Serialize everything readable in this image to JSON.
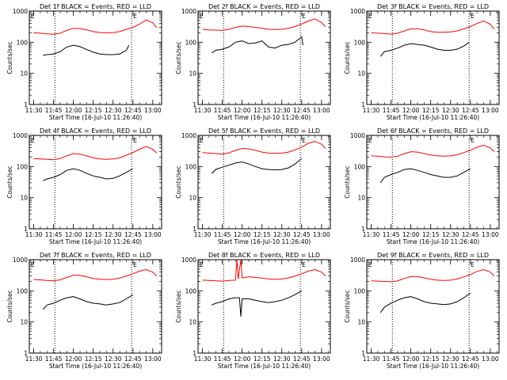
{
  "colors": {
    "events": "#000000",
    "lld": "#ff0000",
    "axes": "#000000",
    "background": "#ffffff"
  },
  "chart_data": {
    "type": "line",
    "layout": "3x3 grid",
    "x_axis": {
      "label": "Start Time (16-Jul-10 11:26:40)",
      "ticks": [
        "11:30",
        "11:45",
        "12:00",
        "12:15",
        "12:30",
        "12:45",
        "13:00"
      ],
      "range": [
        "11:26:40",
        "13:06:40"
      ]
    },
    "y_axis": {
      "label": "Counts/sec",
      "scale": "log",
      "range": [
        1,
        1000
      ],
      "ticks": [
        "1",
        "10",
        "100",
        "1000"
      ]
    },
    "markers": [
      {
        "time": "11:46",
        "style": "dotted"
      },
      {
        "time": "12:44",
        "style": "dotted",
        "label": "E"
      }
    ],
    "start_marker_label": "E",
    "panels": [
      {
        "title": "Det 1f BLACK = Events, RED = LLD",
        "series": [
          {
            "name": "Events",
            "color": "#000000",
            "x": [
              "11:37",
              "11:40",
              "11:45",
              "11:50",
              "11:55",
              "12:00",
              "12:05",
              "12:10",
              "12:15",
              "12:20",
              "12:25",
              "12:30",
              "12:35",
              "12:40",
              "12:42"
            ],
            "y": [
              38,
              40,
              42,
              50,
              70,
              80,
              72,
              58,
              48,
              42,
              40,
              40,
              42,
              55,
              80
            ]
          },
          {
            "name": "LLD",
            "color": "#ff0000",
            "x": [
              "11:30",
              "11:35",
              "11:40",
              "11:45",
              "11:50",
              "11:55",
              "12:00",
              "12:05",
              "12:10",
              "12:15",
              "12:20",
              "12:25",
              "12:30",
              "12:35",
              "12:40",
              "12:45",
              "12:50",
              "12:55",
              "13:00",
              "13:03"
            ],
            "y": [
              200,
              195,
              185,
              180,
              195,
              240,
              280,
              275,
              250,
              220,
              205,
              200,
              205,
              220,
              260,
              300,
              380,
              520,
              420,
              290
            ]
          }
        ]
      },
      {
        "title": "Det 2f BLACK = Events, RED = LLD",
        "series": [
          {
            "name": "Events",
            "color": "#000000",
            "x": [
              "11:37",
              "11:40",
              "11:45",
              "11:50",
              "11:55",
              "12:00",
              "12:05",
              "12:10",
              "12:15",
              "12:20",
              "12:25",
              "12:30",
              "12:35",
              "12:40",
              "12:45",
              "12:46"
            ],
            "y": [
              45,
              55,
              60,
              70,
              100,
              110,
              90,
              95,
              110,
              70,
              65,
              80,
              85,
              100,
              150,
              80
            ]
          },
          {
            "name": "LLD",
            "color": "#ff0000",
            "x": [
              "11:30",
              "11:35",
              "11:40",
              "11:45",
              "11:50",
              "11:55",
              "12:00",
              "12:05",
              "12:10",
              "12:15",
              "12:20",
              "12:25",
              "12:30",
              "12:35",
              "12:40",
              "12:45",
              "12:50",
              "12:55",
              "13:00",
              "13:03"
            ],
            "y": [
              260,
              250,
              245,
              240,
              260,
              300,
              330,
              320,
              300,
              280,
              260,
              255,
              260,
              280,
              320,
              380,
              480,
              560,
              430,
              320
            ]
          }
        ]
      },
      {
        "title": "Det 3f BLACK = Events, RED = LLD",
        "series": [
          {
            "name": "Events",
            "color": "#000000",
            "x": [
              "11:37",
              "11:40",
              "11:45",
              "11:50",
              "11:55",
              "12:00",
              "12:05",
              "12:10",
              "12:15",
              "12:20",
              "12:25",
              "12:30",
              "12:35",
              "12:40",
              "12:44"
            ],
            "y": [
              35,
              50,
              55,
              65,
              80,
              90,
              85,
              80,
              70,
              60,
              55,
              55,
              60,
              75,
              100
            ]
          },
          {
            "name": "LLD",
            "color": "#ff0000",
            "x": [
              "11:30",
              "11:35",
              "11:40",
              "11:45",
              "11:50",
              "11:55",
              "12:00",
              "12:05",
              "12:10",
              "12:15",
              "12:20",
              "12:25",
              "12:30",
              "12:35",
              "12:40",
              "12:45",
              "12:50",
              "12:55",
              "13:00",
              "13:03"
            ],
            "y": [
              200,
              195,
              190,
              180,
              195,
              230,
              270,
              270,
              250,
              220,
              210,
              210,
              215,
              230,
              270,
              320,
              400,
              480,
              380,
              260
            ]
          }
        ]
      },
      {
        "title": "Det 4f BLACK = Events, RED = LLD",
        "series": [
          {
            "name": "Events",
            "color": "#000000",
            "x": [
              "11:37",
              "11:40",
              "11:45",
              "11:50",
              "11:55",
              "12:00",
              "12:05",
              "12:10",
              "12:15",
              "12:20",
              "12:25",
              "12:30",
              "12:35",
              "12:40",
              "12:45"
            ],
            "y": [
              35,
              40,
              45,
              55,
              75,
              85,
              75,
              60,
              50,
              45,
              40,
              42,
              50,
              65,
              85
            ]
          },
          {
            "name": "LLD",
            "color": "#ff0000",
            "x": [
              "11:30",
              "11:35",
              "11:40",
              "11:45",
              "11:50",
              "11:55",
              "12:00",
              "12:05",
              "12:10",
              "12:15",
              "12:20",
              "12:25",
              "12:30",
              "12:35",
              "12:40",
              "12:45",
              "12:50",
              "12:55",
              "13:00",
              "13:03"
            ],
            "y": [
              180,
              175,
              170,
              165,
              180,
              220,
              260,
              250,
              220,
              190,
              175,
              170,
              175,
              190,
              230,
              280,
              360,
              440,
              360,
              270
            ]
          }
        ]
      },
      {
        "title": "Det 5f BLACK = Events, RED = LLD",
        "series": [
          {
            "name": "Events",
            "color": "#000000",
            "x": [
              "11:37",
              "11:40",
              "11:45",
              "11:50",
              "11:55",
              "12:00",
              "12:05",
              "12:10",
              "12:15",
              "12:20",
              "12:25",
              "12:30",
              "12:35",
              "12:40",
              "12:45"
            ],
            "y": [
              60,
              80,
              95,
              110,
              130,
              140,
              120,
              100,
              85,
              80,
              78,
              80,
              90,
              120,
              180
            ]
          },
          {
            "name": "LLD",
            "color": "#ff0000",
            "x": [
              "11:30",
              "11:35",
              "11:40",
              "11:45",
              "11:50",
              "11:55",
              "12:00",
              "12:05",
              "12:10",
              "12:15",
              "12:20",
              "12:25",
              "12:30",
              "12:35",
              "12:40",
              "12:45",
              "12:50",
              "12:55",
              "13:00",
              "13:03"
            ],
            "y": [
              280,
              270,
              260,
              250,
              275,
              330,
              380,
              370,
              330,
              290,
              270,
              265,
              270,
              290,
              340,
              420,
              560,
              640,
              520,
              380
            ]
          }
        ]
      },
      {
        "title": "Det 6f BLACK = Events, RED = LLD",
        "series": [
          {
            "name": "Events",
            "color": "#000000",
            "x": [
              "11:37",
              "11:40",
              "11:45",
              "11:50",
              "11:55",
              "12:00",
              "12:05",
              "12:10",
              "12:15",
              "12:20",
              "12:25",
              "12:30",
              "12:35",
              "12:40",
              "12:45"
            ],
            "y": [
              30,
              45,
              55,
              65,
              80,
              85,
              75,
              65,
              55,
              50,
              45,
              45,
              50,
              65,
              85
            ]
          },
          {
            "name": "LLD",
            "color": "#ff0000",
            "x": [
              "11:30",
              "11:35",
              "11:40",
              "11:45",
              "11:50",
              "11:55",
              "12:00",
              "12:05",
              "12:10",
              "12:15",
              "12:20",
              "12:25",
              "12:30",
              "12:35",
              "12:40",
              "12:45",
              "12:50",
              "12:55",
              "13:00",
              "13:03"
            ],
            "y": [
              220,
              215,
              205,
              200,
              215,
              260,
              300,
              290,
              260,
              235,
              220,
              215,
              220,
              240,
              280,
              330,
              420,
              480,
              400,
              300
            ]
          }
        ]
      },
      {
        "title": "Det 7f BLACK = Events, RED = LLD",
        "series": [
          {
            "name": "Events",
            "color": "#000000",
            "x": [
              "11:37",
              "11:40",
              "11:45",
              "11:50",
              "11:55",
              "12:00",
              "12:05",
              "12:10",
              "12:15",
              "12:20",
              "12:25",
              "12:30",
              "12:35",
              "12:40",
              "12:45"
            ],
            "y": [
              25,
              35,
              40,
              50,
              60,
              65,
              55,
              45,
              40,
              38,
              35,
              38,
              42,
              55,
              75
            ]
          },
          {
            "name": "LLD",
            "color": "#ff0000",
            "x": [
              "11:30",
              "11:35",
              "11:40",
              "11:45",
              "11:50",
              "11:55",
              "12:00",
              "12:05",
              "12:10",
              "12:15",
              "12:20",
              "12:25",
              "12:30",
              "12:35",
              "12:40",
              "12:45",
              "12:50",
              "12:55",
              "13:00",
              "13:03"
            ],
            "y": [
              230,
              225,
              215,
              210,
              225,
              270,
              320,
              310,
              280,
              250,
              235,
              230,
              235,
              255,
              300,
              350,
              430,
              480,
              400,
              300
            ]
          }
        ]
      },
      {
        "title": "Det 8f BLACK = Events, RED = LLD",
        "series": [
          {
            "name": "Events",
            "color": "#000000",
            "x": [
              "11:37",
              "11:40",
              "11:45",
              "11:50",
              "11:55",
              "11:58",
              "11:59",
              "12:00",
              "12:05",
              "12:10",
              "12:15",
              "12:20",
              "12:25",
              "12:30",
              "12:35",
              "12:40",
              "12:45"
            ],
            "y": [
              35,
              40,
              45,
              55,
              60,
              60,
              15,
              55,
              55,
              50,
              45,
              42,
              45,
              50,
              60,
              75,
              100
            ]
          },
          {
            "name": "LLD",
            "color": "#ff0000",
            "x": [
              "11:30",
              "11:35",
              "11:40",
              "11:45",
              "11:50",
              "11:55",
              "11:56",
              "11:57",
              "11:59",
              "12:00",
              "12:05",
              "12:10",
              "12:15",
              "12:20",
              "12:25",
              "12:30",
              "12:35",
              "12:40",
              "12:45",
              "12:50",
              "12:55",
              "13:00",
              "13:03"
            ],
            "y": [
              220,
              215,
              210,
              205,
              215,
              220,
              1000,
              240,
              1000,
              260,
              280,
              270,
              255,
              240,
              235,
              240,
              260,
              300,
              350,
              430,
              480,
              400,
              300
            ]
          }
        ]
      },
      {
        "title": "Det 9f BLACK = Events, RED = LLD",
        "series": [
          {
            "name": "Events",
            "color": "#000000",
            "x": [
              "11:37",
              "11:40",
              "11:45",
              "11:50",
              "11:55",
              "12:00",
              "12:05",
              "12:10",
              "12:15",
              "12:20",
              "12:25",
              "12:30",
              "12:35",
              "12:40",
              "12:45"
            ],
            "y": [
              20,
              30,
              40,
              50,
              60,
              65,
              55,
              45,
              40,
              38,
              36,
              38,
              45,
              60,
              85
            ]
          },
          {
            "name": "LLD",
            "color": "#ff0000",
            "x": [
              "11:30",
              "11:35",
              "11:40",
              "11:45",
              "11:50",
              "11:55",
              "12:00",
              "12:05",
              "12:10",
              "12:15",
              "12:20",
              "12:25",
              "12:30",
              "12:35",
              "12:40",
              "12:45",
              "12:50",
              "12:55",
              "13:00",
              "13:03"
            ],
            "y": [
              210,
              205,
              200,
              195,
              210,
              250,
              290,
              285,
              260,
              235,
              220,
              215,
              220,
              240,
              280,
              330,
              420,
              480,
              400,
              300
            ]
          }
        ]
      }
    ]
  }
}
